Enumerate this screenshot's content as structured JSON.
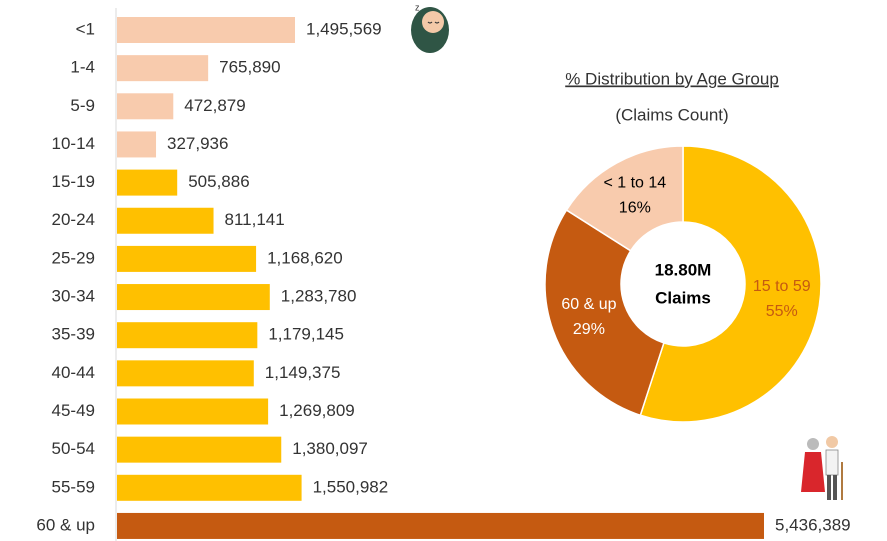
{
  "chart_data": [
    {
      "type": "hbar",
      "categories": [
        "<1",
        "1-4",
        "5-9",
        "10-14",
        "15-19",
        "20-24",
        "25-29",
        "30-34",
        "35-39",
        "40-44",
        "45-49",
        "50-54",
        "55-59",
        "60 & up"
      ],
      "values": [
        1495569,
        765890,
        472879,
        327936,
        505886,
        811141,
        1168620,
        1283780,
        1179145,
        1149375,
        1269809,
        1380097,
        1550982,
        5436389
      ],
      "value_labels": [
        "1,495,569",
        "765,890",
        "472,879",
        "327,936",
        "505,886",
        "811,141",
        "1,168,620",
        "1,283,780",
        "1,179,145",
        "1,149,375",
        "1,269,809",
        "1,380,097",
        "1,550,982",
        "5,436,389"
      ],
      "colors": [
        "#f8cbad",
        "#f8cbad",
        "#f8cbad",
        "#f8cbad",
        "#ffc000",
        "#ffc000",
        "#ffc000",
        "#ffc000",
        "#ffc000",
        "#ffc000",
        "#ffc000",
        "#ffc000",
        "#ffc000",
        "#c55a11"
      ]
    },
    {
      "type": "donut",
      "title": "% Distribution by Age Group",
      "subtitle": "(Claims Count)",
      "categories": [
        "15 to 59",
        "60 & up",
        "< 1 to 14"
      ],
      "values": [
        55,
        29,
        16
      ],
      "value_labels": [
        "55%",
        "29%",
        "16%"
      ],
      "colors": [
        "#ffc000",
        "#c55a11",
        "#f8cbad"
      ],
      "label_colors": [
        "#c55a11",
        "#ffffff",
        "#000000"
      ],
      "center_value": "18.80M",
      "center_text": "Claims"
    }
  ]
}
